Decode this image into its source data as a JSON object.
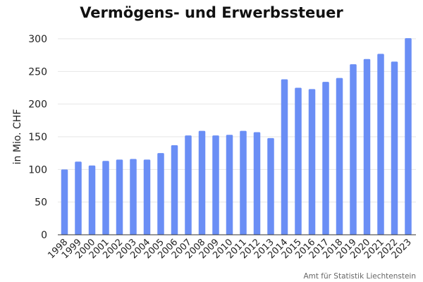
{
  "chart_data": {
    "type": "bar",
    "title": "Vermögens- und Erwerbssteuer",
    "ylabel": "in Mio. CHF",
    "xlabel": "",
    "ylim": [
      0,
      300
    ],
    "yticks": [
      0,
      50,
      100,
      150,
      200,
      250,
      300
    ],
    "grid": true,
    "bar_color": "#6a8ef5",
    "categories": [
      "1998",
      "1999",
      "2000",
      "2001",
      "2002",
      "2003",
      "2004",
      "2005",
      "2006",
      "2007",
      "2008",
      "2009",
      "2010",
      "2011",
      "2012",
      "2013",
      "2014",
      "2015",
      "2016",
      "2017",
      "2018",
      "2019",
      "2020",
      "2021",
      "2022",
      "2023"
    ],
    "values": [
      100,
      112,
      106,
      113,
      115,
      116,
      115,
      125,
      137,
      152,
      159,
      152,
      153,
      159,
      157,
      148,
      238,
      225,
      223,
      234,
      240,
      261,
      269,
      277,
      265,
      301
    ],
    "source": "Amt für Statistik Liechtenstein"
  }
}
